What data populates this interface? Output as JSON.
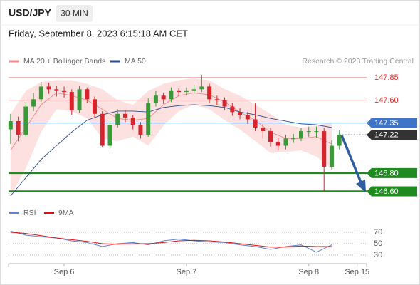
{
  "chart_data": [
    {
      "type": "candlestick",
      "title": "USD/JPY",
      "timeframe": "30 MIN",
      "subtitle": "Friday, September 8, 2023 6:15:18 AM CET",
      "credit": "Research © 2023 Trading Central",
      "up_color": "#3a9a3a",
      "down_color": "#d8252d",
      "x": [
        0,
        3,
        6,
        9,
        12,
        15,
        18,
        21,
        24,
        27,
        30,
        33,
        36,
        39,
        42,
        45,
        48,
        51,
        54,
        57,
        60,
        63,
        66,
        69,
        72,
        75,
        78,
        81,
        84,
        87,
        90,
        93,
        96,
        99,
        102,
        105,
        108,
        111,
        114,
        117,
        120,
        123,
        126,
        129
      ],
      "open": [
        147.28,
        147.37,
        147.22,
        147.53,
        147.61,
        147.75,
        147.72,
        147.7,
        147.69,
        147.49,
        147.72,
        147.61,
        147.45,
        147.1,
        147.33,
        147.45,
        147.41,
        147.33,
        147.22,
        147.57,
        147.65,
        147.61,
        147.7,
        147.69,
        147.7,
        147.72,
        147.75,
        147.61,
        147.6,
        147.53,
        147.47,
        147.44,
        147.39,
        147.3,
        147.26,
        147.14,
        147.1,
        147.18,
        147.18,
        147.26,
        147.26,
        147.26,
        146.87,
        147.1
      ],
      "high": [
        147.45,
        147.42,
        147.58,
        147.68,
        147.8,
        147.79,
        147.76,
        147.75,
        147.72,
        147.76,
        147.74,
        147.64,
        147.48,
        147.37,
        147.5,
        147.49,
        147.44,
        147.36,
        147.62,
        147.7,
        147.68,
        147.74,
        147.73,
        147.74,
        147.77,
        147.88,
        147.78,
        147.65,
        147.63,
        147.57,
        147.51,
        147.47,
        147.57,
        147.34,
        147.3,
        147.19,
        147.22,
        147.23,
        147.3,
        147.31,
        147.31,
        147.29,
        147.16,
        147.27
      ],
      "low": [
        147.12,
        147.15,
        147.2,
        147.48,
        147.58,
        147.67,
        147.64,
        147.63,
        147.44,
        147.46,
        147.57,
        147.4,
        147.08,
        147.07,
        147.3,
        147.36,
        147.28,
        147.18,
        147.2,
        147.53,
        147.56,
        147.58,
        147.64,
        147.65,
        147.67,
        147.69,
        147.57,
        147.55,
        147.49,
        147.43,
        147.39,
        147.34,
        147.26,
        147.18,
        147.09,
        147.05,
        147.06,
        147.13,
        147.15,
        147.2,
        147.19,
        146.6,
        146.84,
        147.06
      ],
      "close": [
        147.37,
        147.22,
        147.53,
        147.61,
        147.75,
        147.72,
        147.7,
        147.69,
        147.49,
        147.72,
        147.61,
        147.45,
        147.1,
        147.33,
        147.45,
        147.41,
        147.33,
        147.22,
        147.57,
        147.65,
        147.61,
        147.7,
        147.69,
        147.7,
        147.72,
        147.75,
        147.61,
        147.6,
        147.53,
        147.47,
        147.44,
        147.39,
        147.3,
        147.26,
        147.14,
        147.1,
        147.18,
        147.18,
        147.26,
        147.26,
        147.26,
        146.87,
        147.1,
        147.22
      ],
      "xlim": [
        -0.8,
        139.7
      ],
      "ylim": [
        146.51,
        147.98
      ],
      "overlays": {
        "x": [
          0,
          6,
          12,
          18,
          24,
          30,
          36,
          42,
          48,
          54,
          60,
          66,
          72,
          78,
          84,
          90,
          96,
          102,
          108,
          114,
          120,
          126
        ],
        "series": [
          {
            "name": "MA 20 + Bollinger Bands",
            "color": "#f08a8a",
            "band_color": "#fde1e1",
            "values": [
              147.05,
              147.3,
              147.55,
              147.68,
              147.65,
              147.6,
              147.5,
              147.4,
              147.38,
              147.4,
              147.55,
              147.65,
              147.68,
              147.66,
              147.58,
              147.47,
              147.38,
              147.25,
              147.18,
              147.18,
              147.2,
              147.12
            ],
            "upper": [
              147.45,
              147.7,
              147.8,
              147.82,
              147.82,
              147.78,
              147.72,
              147.6,
              147.55,
              147.7,
              147.78,
              147.82,
              147.84,
              147.82,
              147.72,
              147.65,
              147.55,
              147.45,
              147.33,
              147.3,
              147.32,
              147.36
            ],
            "lower": [
              146.55,
              146.85,
              147.25,
              147.5,
              147.48,
              147.4,
              147.18,
              147.15,
              147.2,
              147.1,
              147.32,
              147.48,
              147.55,
              147.5,
              147.38,
              147.28,
              147.15,
              147.02,
              147.03,
              147.05,
              146.98,
              146.85
            ]
          },
          {
            "name": "MA 50",
            "color": "#2b4d86",
            "values": [
              146.55,
              146.75,
              146.95,
              147.1,
              147.25,
              147.38,
              147.44,
              147.48,
              147.48,
              147.47,
              147.52,
              147.54,
              147.55,
              147.54,
              147.52,
              147.47,
              147.44,
              147.4,
              147.37,
              147.34,
              147.33,
              147.3
            ]
          }
        ]
      },
      "levels": [
        {
          "value": 147.85,
          "label": "147.85",
          "color": "#f5a9a9",
          "text_color": "#e0312f",
          "tag": false,
          "line": "solid"
        },
        {
          "value": 147.6,
          "label": "147.60",
          "color": "#f5a9a9",
          "text_color": "#e0312f",
          "tag": false,
          "line": "solid"
        },
        {
          "value": 147.35,
          "label": "147.35",
          "color": "#3f74c8",
          "text_color": "#ffffff",
          "tag": true,
          "line": "solid"
        },
        {
          "value": 147.22,
          "label": "147.22",
          "color": "#333333",
          "text_color": "#ffffff",
          "tag": true,
          "line": "dotted"
        },
        {
          "value": 146.8,
          "label": "146.80",
          "color": "#1f8a1f",
          "text_color": "#ffffff",
          "tag": true,
          "line": "thick"
        },
        {
          "value": 146.6,
          "label": "146.60",
          "color": "#1f8a1f",
          "text_color": "#ffffff",
          "tag": true,
          "line": "thick"
        }
      ]
    },
    {
      "type": "line",
      "x": [
        0,
        6,
        12,
        18,
        24,
        30,
        36,
        42,
        48,
        54,
        60,
        66,
        72,
        78,
        84,
        90,
        96,
        102,
        108,
        114,
        120,
        126
      ],
      "series": [
        {
          "name": "RSI",
          "color": "#5b84d6",
          "values": [
            72,
            65,
            62,
            60,
            55,
            52,
            45,
            50,
            52,
            48,
            55,
            58,
            55,
            53,
            52,
            48,
            45,
            40,
            45,
            48,
            35,
            48
          ]
        },
        {
          "name": "9MA",
          "color": "#e01010",
          "values": [
            70,
            68,
            64,
            60,
            57,
            54,
            50,
            49,
            50,
            50,
            52,
            55,
            56,
            55,
            53,
            50,
            47,
            44,
            44,
            46,
            45,
            45
          ]
        }
      ],
      "xlim": [
        -0.8,
        139.7
      ],
      "xticks": [
        {
          "value": 21,
          "label": "Sep 6"
        },
        {
          "value": 69,
          "label": "Sep 7"
        },
        {
          "value": 117,
          "label": "Sep 8"
        },
        {
          "value": 136,
          "label": "Sep 15"
        }
      ],
      "ylim": [
        22,
        90
      ],
      "yticks": [
        30,
        50,
        70
      ]
    }
  ]
}
